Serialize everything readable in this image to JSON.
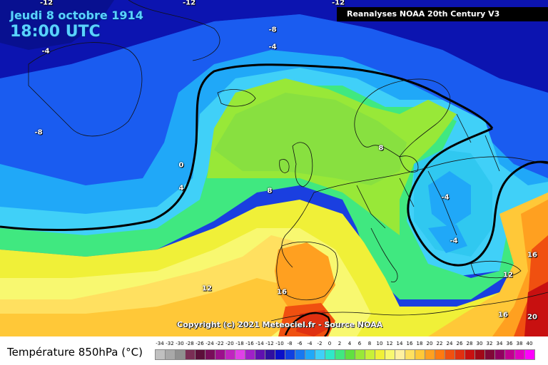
{
  "header": {
    "date": "Jeudi 8 octobre 1914",
    "time": "18:00 UTC"
  },
  "source": "Reanalyses NOAA 20th Century V3",
  "copyright": "Copyright (c) 2021 Meteociel.fr - Source NOAA",
  "legend": {
    "title": "Température 850hPa (°C)",
    "values": [
      "-34",
      "-32",
      "-30",
      "-28",
      "-26",
      "-24",
      "-22",
      "-20",
      "-18",
      "-16",
      "-14",
      "-12",
      "-10",
      "-8",
      "-6",
      "-4",
      "-2",
      "0",
      "2",
      "4",
      "6",
      "8",
      "10",
      "12",
      "14",
      "16",
      "18",
      "20",
      "22",
      "24",
      "26",
      "28",
      "30",
      "32",
      "34",
      "36",
      "38",
      "40"
    ],
    "colors": [
      "#c0c0c0",
      "#a8a8a8",
      "#909090",
      "#7a2e55",
      "#5c0f3a",
      "#780d5a",
      "#9c0f8c",
      "#c024c0",
      "#e040e8",
      "#a020c8",
      "#6010b0",
      "#3010a0",
      "#0a10c8",
      "#1040e0",
      "#1878f0",
      "#20a8f8",
      "#40d0f8",
      "#30e8c8",
      "#40e880",
      "#60e040",
      "#98e838",
      "#c8f038",
      "#f0f038",
      "#f8f870",
      "#fff0a0",
      "#ffe060",
      "#ffc838",
      "#ffa020",
      "#ff7a10",
      "#f05010",
      "#e03010",
      "#c81010",
      "#a00818",
      "#800838",
      "#900060",
      "#c00090",
      "#e000c0",
      "#ff00ff"
    ]
  },
  "isotherm_labels": [
    {
      "id": "m12-a",
      "text": "-12"
    },
    {
      "id": "m12-b",
      "text": "-12"
    },
    {
      "id": "m12-c",
      "text": "-12"
    },
    {
      "id": "m8-a",
      "text": "-8"
    },
    {
      "id": "m8-b",
      "text": "-8"
    },
    {
      "id": "m4-a",
      "text": "-4"
    },
    {
      "id": "m4-b",
      "text": "-4"
    },
    {
      "id": "m4-c",
      "text": "-4"
    },
    {
      "id": "m4-d",
      "text": "-4"
    },
    {
      "id": "z0",
      "text": "0"
    },
    {
      "id": "p4",
      "text": "4"
    },
    {
      "id": "p8-a",
      "text": "8"
    },
    {
      "id": "p8-b",
      "text": "8"
    },
    {
      "id": "p12-a",
      "text": "12"
    },
    {
      "id": "p12-b",
      "text": "12"
    },
    {
      "id": "p16-a",
      "text": "16"
    },
    {
      "id": "p16-b",
      "text": "16"
    },
    {
      "id": "p16-c",
      "text": "16"
    },
    {
      "id": "p20",
      "text": "20"
    }
  ]
}
